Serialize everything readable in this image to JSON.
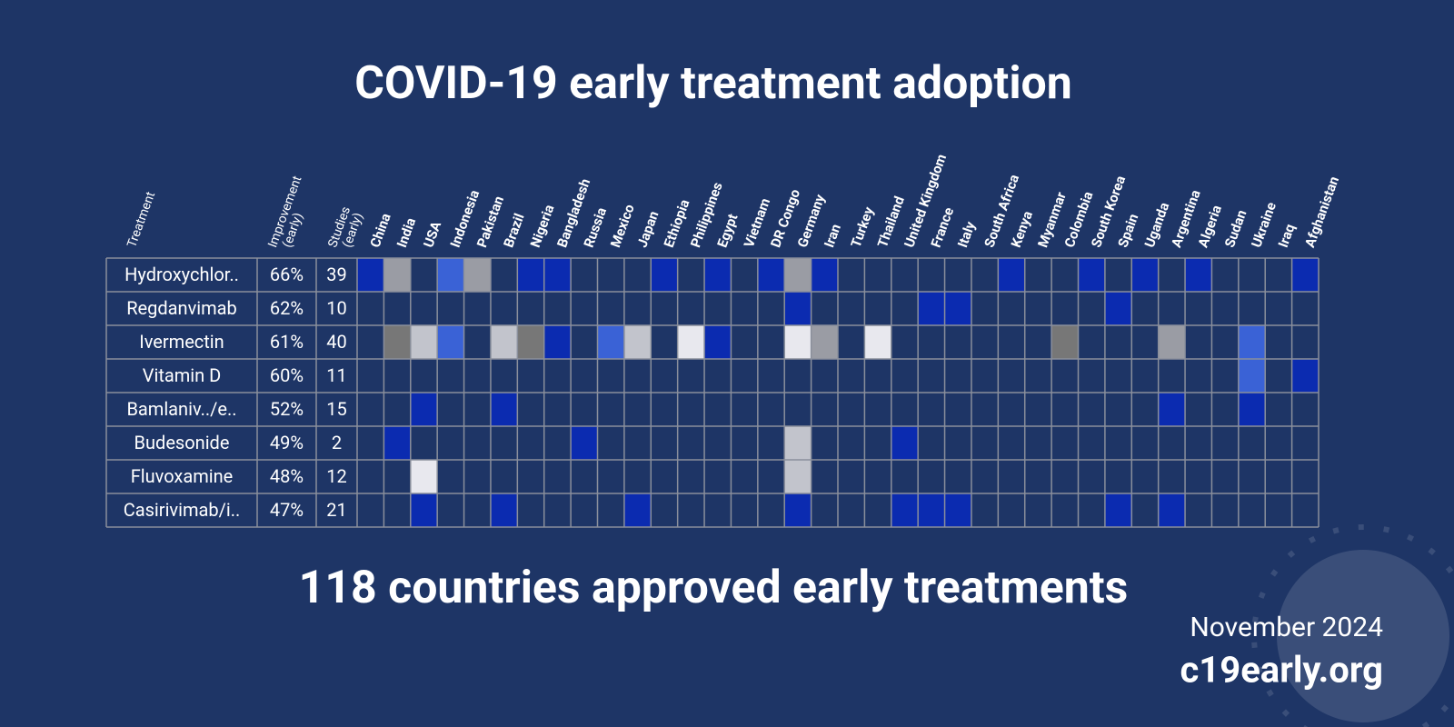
{
  "title": "COVID-19 early treatment adoption",
  "headers": {
    "treatment": "Treatment",
    "improvement": [
      "Improvement",
      "(early)"
    ],
    "studies": [
      "Studies",
      "(early)"
    ]
  },
  "countries": [
    "China",
    "India",
    "USA",
    "Indonesia",
    "Pakistan",
    "Brazil",
    "Nigeria",
    "Bangladesh",
    "Russia",
    "Mexico",
    "Japan",
    "Ethiopia",
    "Philippines",
    "Egypt",
    "Vietnam",
    "DR Congo",
    "Germany",
    "Iran",
    "Turkey",
    "Thailand",
    "United Kingdom",
    "France",
    "Italy",
    "South Africa",
    "Kenya",
    "Myanmar",
    "Colombia",
    "South Korea",
    "Spain",
    "Uganda",
    "Argentina",
    "Algeria",
    "Sudan",
    "Ukraine",
    "Iraq",
    "Afghanistan"
  ],
  "rows": [
    {
      "treatment": "Hydroxychlor..",
      "improvement": "66%",
      "studies": 39,
      "cells": [
        "#0b2bb0",
        "#9a9ca4",
        null,
        "#3a62d6",
        "#9a9ca4",
        null,
        "#0b2bb0",
        "#0b2bb0",
        null,
        null,
        null,
        "#0b2bb0",
        null,
        "#0b2bb0",
        null,
        "#0b2bb0",
        "#9a9ca4",
        "#0b2bb0",
        null,
        null,
        null,
        null,
        null,
        null,
        "#0b2bb0",
        null,
        null,
        "#0b2bb0",
        null,
        "#0b2bb0",
        null,
        "#0b2bb0",
        null,
        null,
        null,
        "#0b2bb0"
      ]
    },
    {
      "treatment": "Regdanvimab",
      "improvement": "62%",
      "studies": 10,
      "cells": [
        null,
        null,
        null,
        null,
        null,
        null,
        null,
        null,
        null,
        null,
        null,
        null,
        null,
        null,
        null,
        null,
        "#0b2bb0",
        null,
        null,
        null,
        null,
        "#0b2bb0",
        "#0b2bb0",
        null,
        null,
        null,
        null,
        null,
        "#0b2bb0",
        null,
        null,
        null,
        null,
        null,
        null,
        null
      ]
    },
    {
      "treatment": "Ivermectin",
      "improvement": "61%",
      "studies": 40,
      "cells": [
        null,
        "#777777",
        "#c2c4cc",
        "#3a62d6",
        null,
        "#c2c4cc",
        "#777777",
        "#0b2bb0",
        null,
        "#3a62d6",
        "#c2c4cc",
        null,
        "#e8e8ee",
        "#0b2bb0",
        null,
        null,
        "#e8e8ee",
        "#9a9ca4",
        null,
        "#e8e8ee",
        null,
        null,
        null,
        null,
        null,
        null,
        "#777777",
        null,
        null,
        null,
        "#9a9ca4",
        null,
        null,
        "#3a62d6",
        null,
        null
      ]
    },
    {
      "treatment": "Vitamin D",
      "improvement": "60%",
      "studies": 11,
      "cells": [
        null,
        null,
        null,
        null,
        null,
        null,
        null,
        null,
        null,
        null,
        null,
        null,
        null,
        null,
        null,
        null,
        null,
        null,
        null,
        null,
        null,
        null,
        null,
        null,
        null,
        null,
        null,
        null,
        null,
        null,
        null,
        null,
        null,
        "#3a62d6",
        null,
        "#0b2bb0"
      ]
    },
    {
      "treatment": "Bamlaniv../e..",
      "improvement": "52%",
      "studies": 15,
      "cells": [
        null,
        null,
        "#0b2bb0",
        null,
        null,
        "#0b2bb0",
        null,
        null,
        null,
        null,
        null,
        null,
        null,
        null,
        null,
        null,
        null,
        null,
        null,
        null,
        null,
        null,
        null,
        null,
        null,
        null,
        null,
        null,
        null,
        null,
        "#0b2bb0",
        null,
        null,
        "#0b2bb0",
        null,
        null
      ]
    },
    {
      "treatment": "Budesonide",
      "improvement": "49%",
      "studies": 2,
      "cells": [
        null,
        "#0b2bb0",
        null,
        null,
        null,
        null,
        null,
        null,
        "#0b2bb0",
        null,
        null,
        null,
        null,
        null,
        null,
        null,
        "#c2c4cc",
        null,
        null,
        null,
        "#0b2bb0",
        null,
        null,
        null,
        null,
        null,
        null,
        null,
        null,
        null,
        null,
        null,
        null,
        null,
        null,
        null
      ]
    },
    {
      "treatment": "Fluvoxamine",
      "improvement": "48%",
      "studies": 12,
      "cells": [
        null,
        null,
        "#e8e8ee",
        null,
        null,
        null,
        null,
        null,
        null,
        null,
        null,
        null,
        null,
        null,
        null,
        null,
        "#c2c4cc",
        null,
        null,
        null,
        null,
        null,
        null,
        null,
        null,
        null,
        null,
        null,
        null,
        null,
        null,
        null,
        null,
        null,
        null,
        null
      ]
    },
    {
      "treatment": "Casirivimab/i..",
      "improvement": "47%",
      "studies": 21,
      "cells": [
        null,
        null,
        "#0b2bb0",
        null,
        null,
        "#0b2bb0",
        null,
        null,
        null,
        null,
        "#0b2bb0",
        null,
        null,
        null,
        null,
        null,
        "#0b2bb0",
        null,
        null,
        null,
        "#0b2bb0",
        "#0b2bb0",
        "#0b2bb0",
        null,
        null,
        null,
        null,
        null,
        "#0b2bb0",
        null,
        "#0b2bb0",
        null,
        null,
        null,
        null,
        null
      ]
    }
  ],
  "footer": {
    "headline": "118 countries approved early treatments",
    "date": "November 2024",
    "site": "c19early.org"
  }
}
